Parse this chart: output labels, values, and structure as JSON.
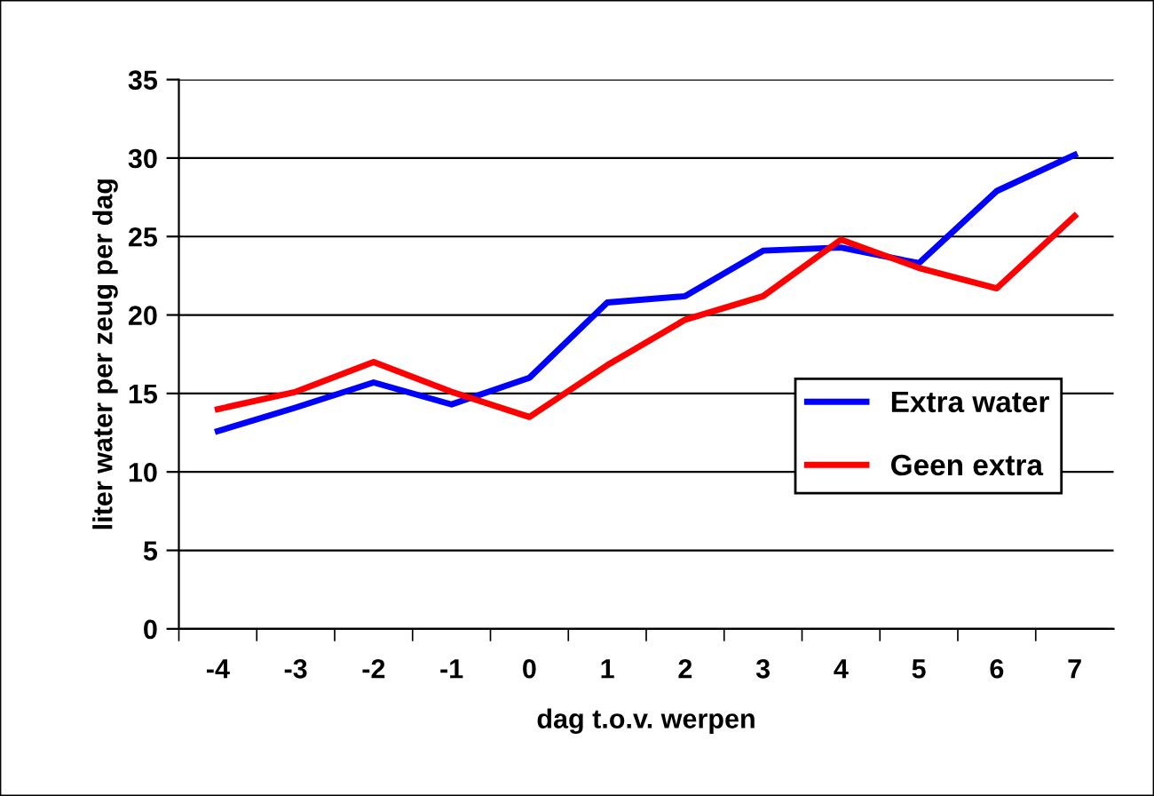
{
  "chart_data": {
    "type": "line",
    "xlabel": "dag t.o.v. werpen",
    "ylabel": "liter water per zeug per dag",
    "categories": [
      "-4",
      "-3",
      "-2",
      "-1",
      "0",
      "1",
      "2",
      "3",
      "4",
      "5",
      "6",
      "7"
    ],
    "series": [
      {
        "name": "Extra water",
        "color": "#0000ff",
        "values": [
          12.6,
          14.1,
          15.7,
          14.3,
          16.0,
          20.8,
          21.2,
          24.1,
          24.3,
          23.3,
          27.9,
          30.2
        ]
      },
      {
        "name": "Geen extra",
        "color": "#ff0000",
        "values": [
          14.0,
          15.1,
          17.0,
          15.1,
          13.5,
          16.8,
          19.7,
          21.2,
          24.8,
          23.0,
          21.7,
          26.3
        ]
      }
    ],
    "ylim": [
      0,
      35
    ],
    "yticks": [
      0,
      5,
      10,
      15,
      20,
      25,
      30,
      35
    ],
    "grid": "y",
    "legend": "bottom right",
    "marker": "none",
    "line_style": "solid"
  }
}
